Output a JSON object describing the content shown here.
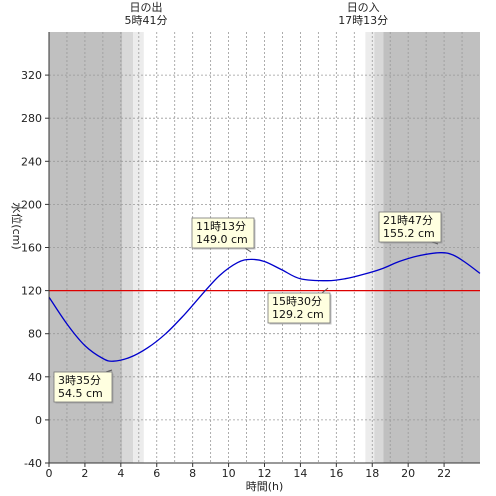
{
  "chart_data": {
    "type": "line",
    "title": "",
    "xlabel": "時間(h)",
    "ylabel": "水位(cm)",
    "xlim": [
      0,
      24
    ],
    "ylim": [
      -40,
      360
    ],
    "x_ticks": [
      0,
      2,
      4,
      6,
      8,
      10,
      12,
      14,
      16,
      18,
      20,
      22
    ],
    "y_ticks": [
      -40,
      0,
      40,
      80,
      120,
      160,
      200,
      240,
      280,
      320
    ],
    "grid": true,
    "reference_line": {
      "value": 120,
      "color": "#dd0000"
    },
    "sun": {
      "sunrise_label": "日の出",
      "sunrise_time": "5時41分",
      "sunrise_hour": 5.683,
      "sunset_label": "日の入",
      "sunset_time": "17時13分",
      "sunset_hour": 17.217
    },
    "series": [
      {
        "color": "#0000cc",
        "x": [
          0,
          1,
          2,
          3,
          3.583,
          4.5,
          5.5,
          6.5,
          7.5,
          8.5,
          9.5,
          10.5,
          11.217,
          12,
          13,
          14,
          15.5,
          16.5,
          17.5,
          18.5,
          19.5,
          20.5,
          21.783,
          22.5,
          23.2,
          24
        ],
        "y": [
          114,
          89,
          69,
          57,
          54.5,
          58,
          67,
          80,
          97,
          116,
          134,
          146,
          149.0,
          147,
          139,
          131,
          129.2,
          131,
          135,
          140,
          147,
          152,
          155.2,
          153,
          146,
          136
        ]
      }
    ],
    "annotations": [
      {
        "line1": "3時35分",
        "line2": "54.5 cm"
      },
      {
        "line1": "11時13分",
        "line2": "149.0 cm"
      },
      {
        "line1": "15時30分",
        "line2": "129.2 cm"
      },
      {
        "line1": "21時47分",
        "line2": "155.2 cm"
      }
    ],
    "colors": {
      "night": "#c0c0c0",
      "twilight_outer": "#d8d8d8",
      "twilight_inner": "#ececec",
      "day": "#ffffff",
      "grid": "#999999",
      "annotation_bg": "#ffffe0"
    }
  }
}
